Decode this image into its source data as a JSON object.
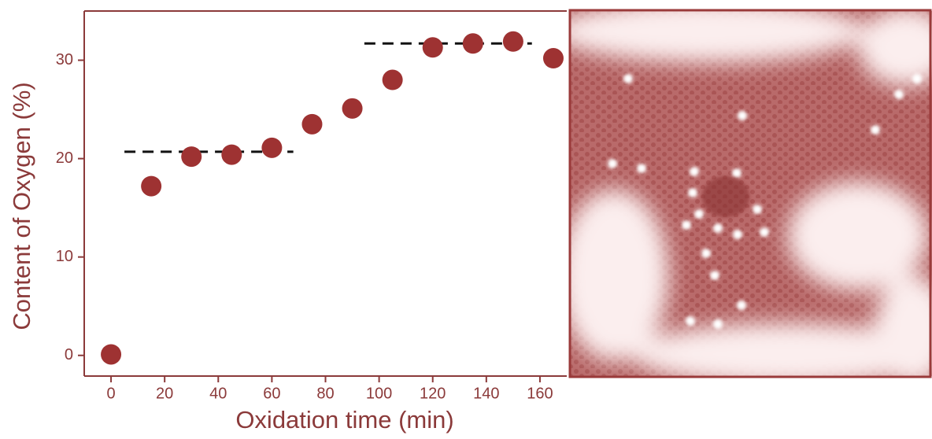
{
  "chart_data": {
    "type": "scatter",
    "x_label": "Oxidation time (min)",
    "y_label": "Content of Oxygen (%)",
    "x": [
      0,
      15,
      30,
      45,
      60,
      75,
      90,
      105,
      120,
      135,
      150,
      165
    ],
    "series": [
      {
        "color": "#9e3232",
        "values": [
          0.1,
          17.2,
          20.2,
          20.4,
          21.1,
          23.5,
          25.1,
          28.0,
          31.3,
          31.7,
          31.9,
          30.2
        ]
      }
    ],
    "reference_lines": [
      {
        "x": [
          5,
          68
        ],
        "y": 20.7
      },
      {
        "x": [
          94.5,
          157
        ],
        "y": 31.7
      }
    ],
    "xlim": [
      -10,
      170
    ],
    "xticks": [
      0,
      20,
      40,
      60,
      80,
      100,
      120,
      140,
      160
    ],
    "ylim": [
      -2.1,
      35
    ],
    "yticks": [
      0,
      10,
      20,
      30
    ]
  }
}
